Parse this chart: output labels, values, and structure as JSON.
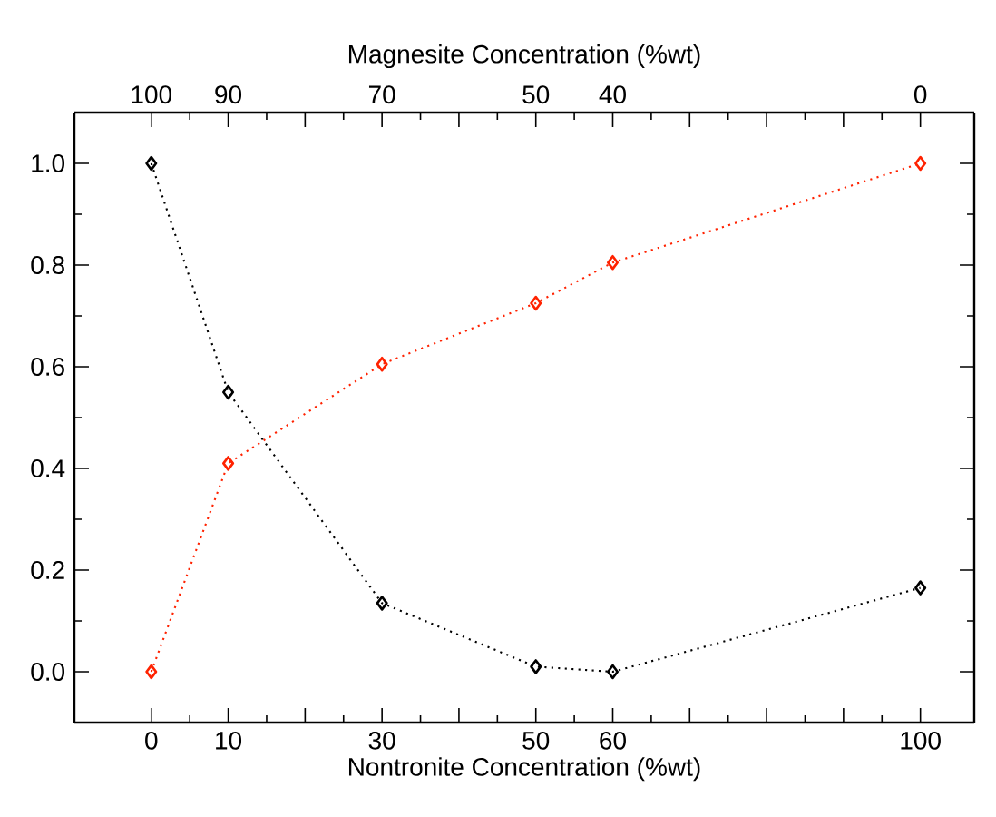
{
  "chart_data": {
    "type": "line",
    "xlabel": "Nontronite Concentration (%wt)",
    "x2label": "Magnesite Concentration (%wt)",
    "x": [
      0,
      10,
      30,
      50,
      60,
      100
    ],
    "series": [
      {
        "color": "#000000",
        "values": [
          1.0,
          0.55,
          0.135,
          0.01,
          0.0,
          0.165
        ]
      },
      {
        "color": "#ff2200",
        "values": [
          0.0,
          0.41,
          0.605,
          0.725,
          0.805,
          1.0
        ]
      }
    ],
    "xlim": [
      -10,
      107
    ],
    "ylim": [
      -0.1,
      1.1
    ],
    "xticks": [
      0,
      10,
      {
        "value": 20,
        "label": null
      },
      30,
      {
        "value": 40,
        "label": null
      },
      50,
      60,
      {
        "value": 70,
        "label": null
      },
      {
        "value": 80,
        "label": null
      },
      {
        "value": 90,
        "label": null
      },
      100
    ],
    "x2lim": [
      110,
      -7
    ],
    "x2ticks": [
      100,
      90,
      {
        "value": 80,
        "label": null
      },
      70,
      {
        "value": 60,
        "label": null
      },
      50,
      40,
      {
        "value": 30,
        "label": null
      },
      {
        "value": 20,
        "label": null
      },
      {
        "value": 10,
        "label": null
      },
      0
    ],
    "yticks": [
      {
        "value": 0.0,
        "label": "0.0"
      },
      {
        "value": 0.2,
        "label": "0.2"
      },
      {
        "value": 0.4,
        "label": "0.4"
      },
      {
        "value": 0.6,
        "label": "0.6"
      },
      {
        "value": 0.8,
        "label": "0.8"
      },
      {
        "value": 1.0,
        "label": "1.0"
      }
    ],
    "marker": "diamond",
    "line_style": "dotted",
    "grid": false
  }
}
